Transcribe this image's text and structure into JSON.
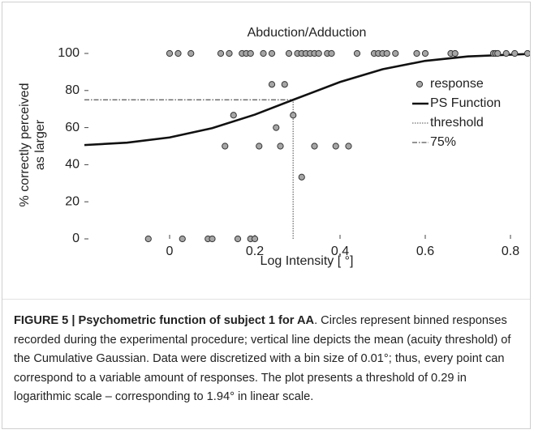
{
  "chart_data": {
    "type": "scatter",
    "title": "Abduction/Adduction",
    "xlabel": "Log Intensity [ °]",
    "ylabel": [
      "% correctly perceived",
      "as larger"
    ],
    "xlim": [
      -0.2,
      0.84
    ],
    "ylim": [
      0,
      100
    ],
    "xticks": [
      0,
      0.2,
      0.4,
      0.6,
      0.8
    ],
    "yticks": [
      0,
      20,
      40,
      60,
      80,
      100
    ],
    "legend": "upper right",
    "series": [
      {
        "name": "response",
        "kind": "points",
        "color": "#a6a6a6",
        "x": [
          0,
          0.02,
          0.05,
          0.12,
          0.14,
          0.17,
          0.18,
          0.19,
          0.22,
          0.24,
          0.28,
          0.3,
          0.31,
          0.32,
          0.33,
          0.34,
          0.35,
          0.37,
          0.38,
          0.44,
          0.48,
          0.49,
          0.5,
          0.51,
          0.53,
          0.58,
          0.6,
          0.66,
          0.67,
          0.76,
          0.765,
          0.77,
          0.79,
          0.81,
          0.84,
          0.24,
          0.27,
          0.15,
          0.25,
          0.29,
          0.13,
          0.21,
          0.26,
          0.34,
          0.39,
          0.42,
          0.31,
          -0.05,
          0.03,
          0.09,
          0.1,
          0.16,
          0.19,
          0.2
        ],
        "values": [
          100,
          100,
          100,
          100,
          100,
          100,
          100,
          100,
          100,
          100,
          100,
          100,
          100,
          100,
          100,
          100,
          100,
          100,
          100,
          100,
          100,
          100,
          100,
          100,
          100,
          100,
          100,
          100,
          100,
          100,
          100,
          100,
          100,
          100,
          100,
          83.3,
          83.3,
          66.7,
          60,
          66.7,
          50,
          50,
          50,
          50,
          50,
          50,
          33.3,
          0,
          0,
          0,
          0,
          0,
          0,
          0
        ]
      },
      {
        "name": "PS Function",
        "kind": "line",
        "color": "#111111",
        "x": [
          -0.2,
          -0.1,
          0,
          0.1,
          0.2,
          0.29,
          0.4,
          0.5,
          0.6,
          0.7,
          0.84
        ],
        "values": [
          50.6,
          51.9,
          54.7,
          59.7,
          67.0,
          75,
          84.6,
          91.5,
          96.0,
          98.4,
          99.7
        ]
      },
      {
        "name": "threshold",
        "kind": "dotted",
        "color": "#888888",
        "x": [
          0.29,
          0.29
        ],
        "values": [
          0,
          75
        ]
      },
      {
        "name": "75%",
        "kind": "dashdot",
        "color": "#555555",
        "x": [
          -0.2,
          0.29
        ],
        "values": [
          75,
          75
        ]
      }
    ]
  },
  "caption": {
    "bold": "FIGURE 5 | Psychometric function of subject 1 for AA",
    "text": ". Circles represent binned responses recorded during the experimental procedure; vertical line depicts the mean (acuity threshold) of the Cumulative Gaussian. Data were discretized with a bin size of 0.01°; thus, every point can correspond to a variable amount of responses. The plot presents a threshold of 0.29 in logarithmic scale – corresponding to 1.94° in linear scale."
  }
}
